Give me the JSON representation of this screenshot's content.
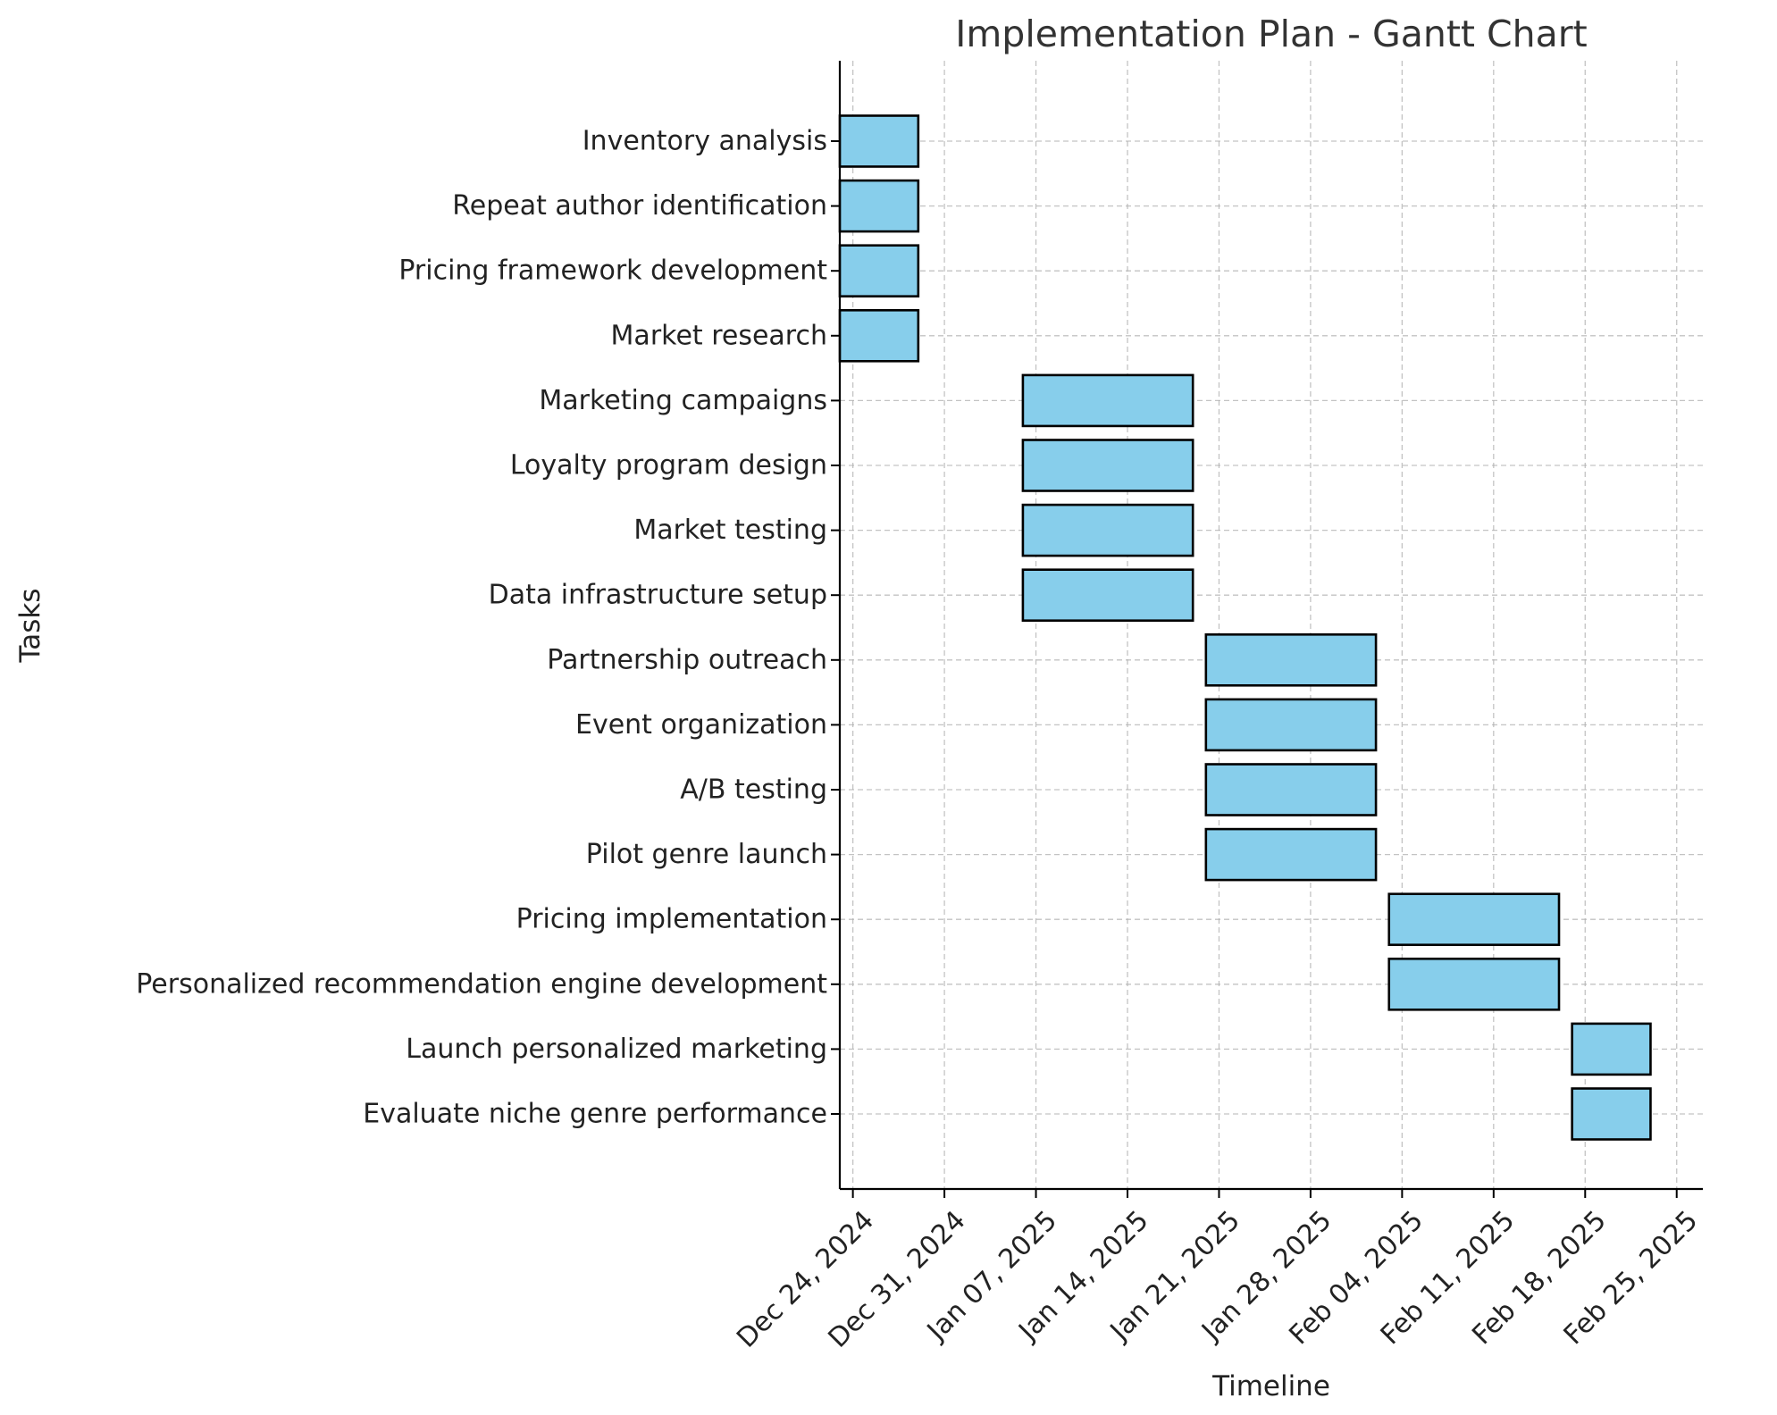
{
  "chart_data": {
    "type": "gantt",
    "title": "Implementation Plan - Gantt Chart",
    "xlabel": "Timeline",
    "ylabel": "Tasks",
    "x_axis": "date",
    "xlim": [
      "2024-12-23",
      "2025-02-27"
    ],
    "x_ticks": [
      "Dec 24, 2024",
      "Dec 31, 2024",
      "Jan 07, 2025",
      "Jan 14, 2025",
      "Jan 21, 2025",
      "Jan 28, 2025",
      "Feb 04, 2025",
      "Feb 11, 2025",
      "Feb 18, 2025",
      "Feb 25, 2025"
    ],
    "x_tick_dates": [
      "2024-12-24",
      "2024-12-31",
      "2025-01-07",
      "2025-01-14",
      "2025-01-21",
      "2025-01-28",
      "2025-02-04",
      "2025-02-11",
      "2025-02-18",
      "2025-02-25"
    ],
    "grid": true,
    "bar_color": "#87CEEB",
    "edge_color": "#000000",
    "tasks": [
      {
        "name": "Inventory analysis",
        "start": "2024-12-23",
        "end": "2024-12-29"
      },
      {
        "name": "Repeat author identification",
        "start": "2024-12-23",
        "end": "2024-12-29"
      },
      {
        "name": "Pricing framework development",
        "start": "2024-12-23",
        "end": "2024-12-29"
      },
      {
        "name": "Market research",
        "start": "2024-12-23",
        "end": "2024-12-29"
      },
      {
        "name": "Marketing campaigns",
        "start": "2025-01-06",
        "end": "2025-01-19"
      },
      {
        "name": "Loyalty program design",
        "start": "2025-01-06",
        "end": "2025-01-19"
      },
      {
        "name": "Market testing",
        "start": "2025-01-06",
        "end": "2025-01-19"
      },
      {
        "name": "Data infrastructure setup",
        "start": "2025-01-06",
        "end": "2025-01-19"
      },
      {
        "name": "Partnership outreach",
        "start": "2025-01-20",
        "end": "2025-02-02"
      },
      {
        "name": "Event organization",
        "start": "2025-01-20",
        "end": "2025-02-02"
      },
      {
        "name": "A/B testing",
        "start": "2025-01-20",
        "end": "2025-02-02"
      },
      {
        "name": "Pilot genre launch",
        "start": "2025-01-20",
        "end": "2025-02-02"
      },
      {
        "name": "Pricing implementation",
        "start": "2025-02-03",
        "end": "2025-02-16"
      },
      {
        "name": "Personalized recommendation engine development",
        "start": "2025-02-03",
        "end": "2025-02-16"
      },
      {
        "name": "Launch personalized marketing",
        "start": "2025-02-17",
        "end": "2025-02-23"
      },
      {
        "name": "Evaluate niche genre performance",
        "start": "2025-02-17",
        "end": "2025-02-23"
      }
    ]
  }
}
